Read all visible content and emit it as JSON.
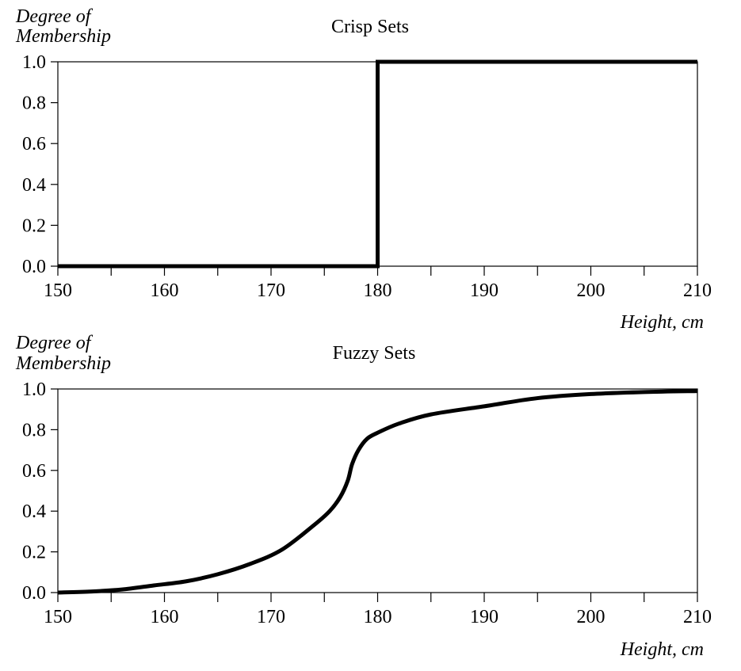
{
  "chart_data": [
    {
      "type": "line",
      "title": "Crisp Sets",
      "ylabel_lines": [
        "Degree of",
        "Membership"
      ],
      "xlabel": "Height, cm",
      "xlim": [
        150,
        210
      ],
      "ylim": [
        0,
        1
      ],
      "xticks": [
        150,
        160,
        170,
        180,
        190,
        200,
        210
      ],
      "yticks": [
        "0.0",
        "0.2",
        "0.4",
        "0.6",
        "0.8",
        "1.0"
      ],
      "grid": false,
      "series": [
        {
          "x": [
            150,
            180,
            180,
            210
          ],
          "y": [
            0.0,
            0.0,
            1.0,
            1.0
          ]
        }
      ]
    },
    {
      "type": "line",
      "title": "Fuzzy Sets",
      "ylabel_lines": [
        "Degree of",
        "Membership"
      ],
      "xlabel": "Height, cm",
      "xlim": [
        150,
        210
      ],
      "ylim": [
        0,
        1
      ],
      "xticks": [
        150,
        160,
        170,
        180,
        190,
        200,
        210
      ],
      "yticks": [
        "0.0",
        "0.2",
        "0.4",
        "0.6",
        "0.8",
        "1.0"
      ],
      "grid": false,
      "series": [
        {
          "x": [
            150,
            153,
            156,
            159,
            162,
            165,
            168,
            171,
            174,
            175.5,
            176.5,
            177.2,
            177.6,
            178.2,
            179,
            180,
            182,
            185,
            190,
            195,
            200,
            205,
            210
          ],
          "y": [
            0.0,
            0.005,
            0.015,
            0.035,
            0.055,
            0.09,
            0.14,
            0.21,
            0.33,
            0.4,
            0.47,
            0.55,
            0.63,
            0.7,
            0.755,
            0.785,
            0.83,
            0.875,
            0.915,
            0.955,
            0.975,
            0.985,
            0.99
          ]
        }
      ]
    }
  ]
}
